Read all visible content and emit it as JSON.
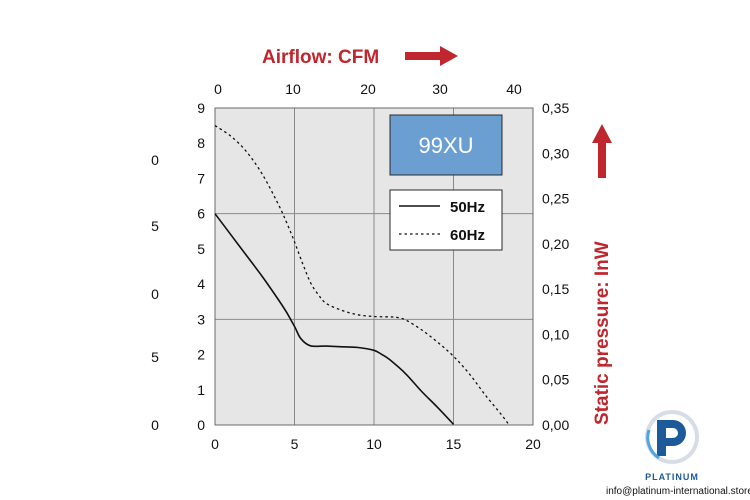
{
  "chart_data": {
    "type": "line",
    "top_axis": {
      "label": "Airflow: CFM",
      "ticks": [
        "0",
        "10",
        "20",
        "30",
        "40"
      ],
      "values": [
        0,
        10,
        20,
        30,
        40
      ]
    },
    "bottom_axis": {
      "ticks": [
        "0",
        "5",
        "10",
        "15",
        "20"
      ],
      "values": [
        0,
        5,
        10,
        15,
        20
      ],
      "xlim": [
        0,
        20
      ]
    },
    "left_axis": {
      "ticks": [
        "0",
        "1",
        "2",
        "3",
        "4",
        "5",
        "6",
        "7",
        "8",
        "9"
      ],
      "values": [
        0,
        1,
        2,
        3,
        4,
        5,
        6,
        7,
        8,
        9
      ],
      "ylim": [
        0,
        9
      ]
    },
    "right_axis": {
      "label": "Static pressure: InW",
      "ticks": [
        "0,00",
        "0,05",
        "0,10",
        "0,15",
        "0,20",
        "0,25",
        "0,30",
        "0,35"
      ]
    },
    "partial_left_ticks": [
      "0",
      "5",
      "0",
      "5",
      "0"
    ],
    "grid": true,
    "badge": "99XU",
    "legend_position": "top-right",
    "series": [
      {
        "name": "50Hz",
        "style": "solid",
        "x": [
          0,
          1,
          2,
          3,
          4,
          4.5,
          5,
          5.4,
          6,
          7,
          8,
          9,
          10,
          10.5,
          11,
          12,
          13,
          14,
          15
        ],
        "y": [
          6.0,
          5.4,
          4.8,
          4.2,
          3.55,
          3.2,
          2.8,
          2.45,
          2.25,
          2.24,
          2.22,
          2.2,
          2.12,
          2.0,
          1.85,
          1.45,
          0.95,
          0.5,
          0.02
        ]
      },
      {
        "name": "60Hz",
        "style": "dotted",
        "x": [
          0,
          1,
          2,
          3,
          4,
          4.5,
          5,
          5.5,
          6,
          6.5,
          7,
          8,
          9,
          10,
          11,
          11.5,
          12,
          13,
          14,
          15,
          16,
          17,
          18,
          18.5
        ],
        "y": [
          8.5,
          8.2,
          7.75,
          7.1,
          6.25,
          5.75,
          5.2,
          4.6,
          4.05,
          3.7,
          3.45,
          3.25,
          3.13,
          3.08,
          3.07,
          3.05,
          2.98,
          2.7,
          2.35,
          1.95,
          1.45,
          0.85,
          0.3,
          0.0
        ]
      }
    ],
    "colors": {
      "plot_bg": "#e6e6e6",
      "grid": "#8a8a8a",
      "badge_bg": "#6b9fd2",
      "accent": "#c0262d",
      "logo": "#1c5a9a"
    }
  },
  "branding": {
    "logo_text": "PLATINUM",
    "email": "info@platinum-international.store"
  }
}
